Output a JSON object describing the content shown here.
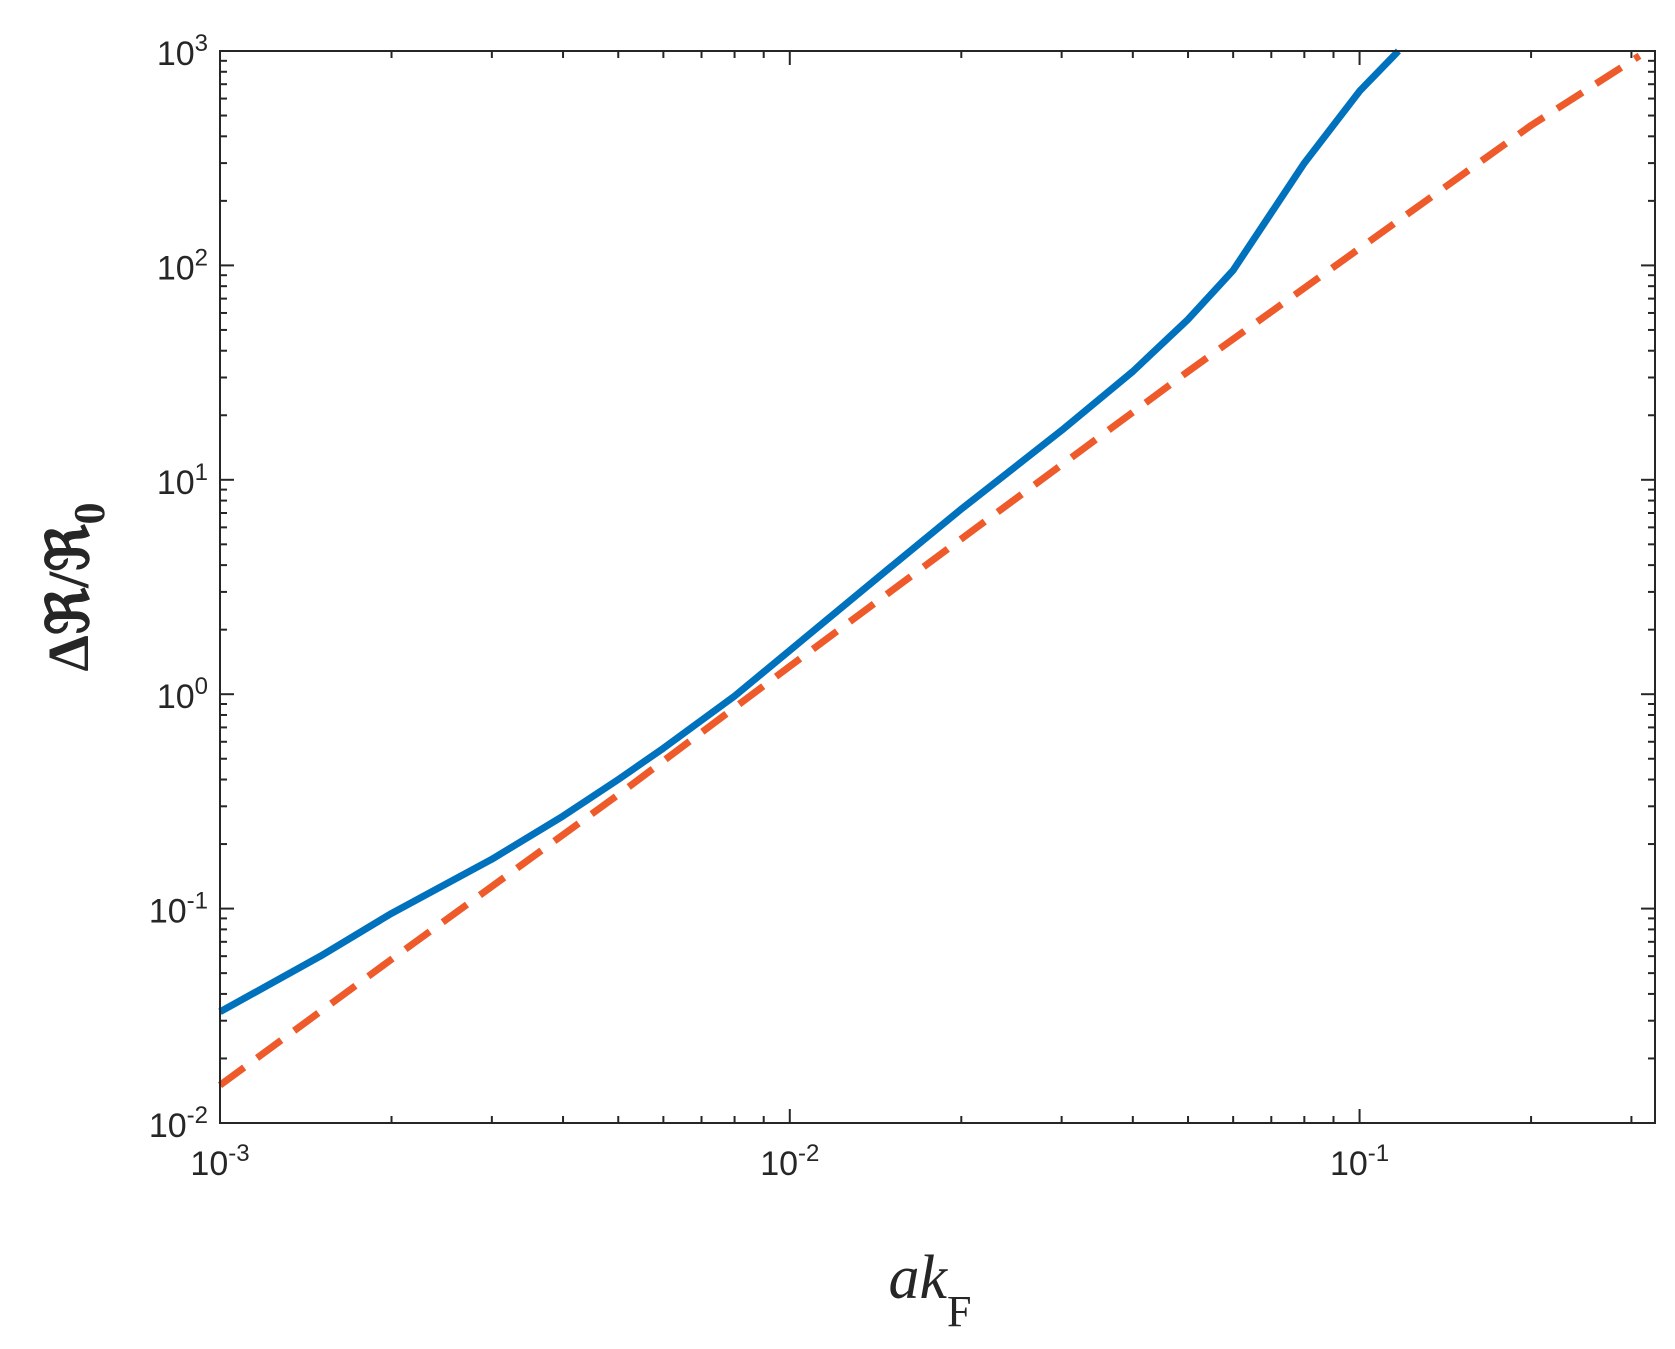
{
  "chart_data": {
    "type": "line",
    "title": "",
    "xscale": "log",
    "yscale": "log",
    "xlim": [
      0.001,
      0.33
    ],
    "ylim": [
      0.01,
      1000
    ],
    "grid": false,
    "box": true,
    "xlabel": {
      "main": "ak",
      "sub": "F"
    },
    "ylabel": {
      "main": "ΔℜR/ℜ",
      "text": "Δℜ/ℜ",
      "sub": "0"
    },
    "x_ticks": [
      {
        "value": 0.001,
        "base": "10",
        "exp": "-3"
      },
      {
        "value": 0.01,
        "base": "10",
        "exp": "-2"
      },
      {
        "value": 0.1,
        "base": "10",
        "exp": "-1"
      }
    ],
    "y_ticks": [
      {
        "value": 0.01,
        "base": "10",
        "exp": "-2"
      },
      {
        "value": 0.1,
        "base": "10",
        "exp": "-1"
      },
      {
        "value": 1,
        "base": "10",
        "exp": "0"
      },
      {
        "value": 10,
        "base": "10",
        "exp": "1"
      },
      {
        "value": 100,
        "base": "10",
        "exp": "2"
      },
      {
        "value": 1000,
        "base": "10",
        "exp": "3"
      }
    ],
    "series": [
      {
        "style": "solid",
        "color": "#0072BD",
        "x": [
          0.001,
          0.0015,
          0.002,
          0.003,
          0.004,
          0.005,
          0.006,
          0.008,
          0.01,
          0.015,
          0.02,
          0.03,
          0.04,
          0.05,
          0.06,
          0.08,
          0.1,
          0.117
        ],
        "y": [
          0.033,
          0.06,
          0.095,
          0.17,
          0.27,
          0.4,
          0.56,
          0.98,
          1.6,
          3.9,
          7.3,
          17,
          32,
          56,
          95,
          300,
          650,
          1000
        ]
      },
      {
        "style": "dashed",
        "color": "#EE5A2A",
        "x": [
          0.001,
          0.002,
          0.005,
          0.01,
          0.02,
          0.05,
          0.1,
          0.2,
          0.31
        ],
        "y": [
          0.015,
          0.058,
          0.34,
          1.35,
          5.3,
          32,
          120,
          450,
          950
        ]
      }
    ]
  }
}
